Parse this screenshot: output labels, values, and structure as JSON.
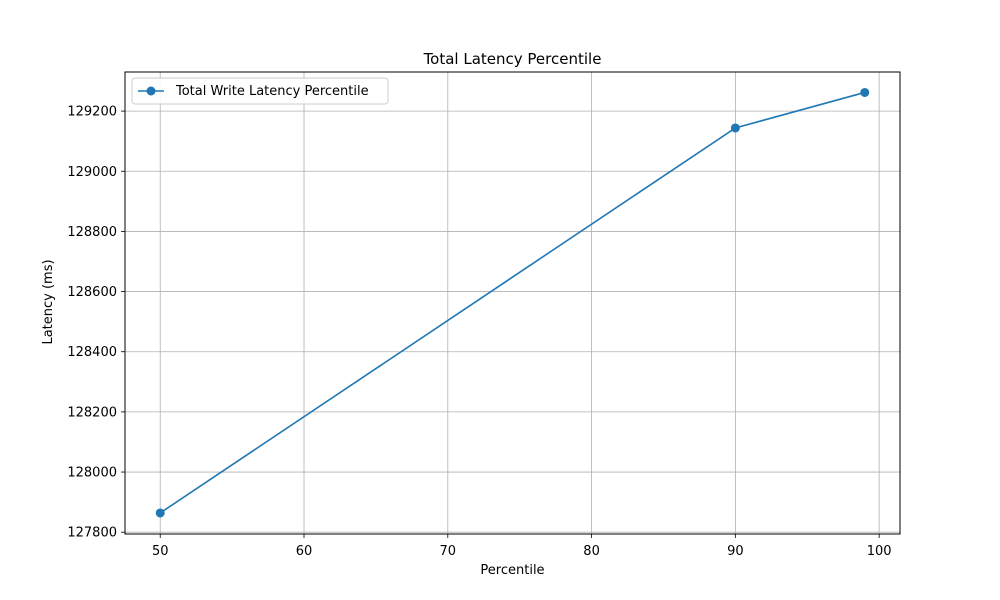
{
  "chart_data": {
    "type": "line",
    "title": "Total Latency Percentile",
    "xlabel": "Percentile",
    "ylabel": "Latency (ms)",
    "xlim": [
      47.55,
      101.45
    ],
    "ylim": [
      127794,
      129330
    ],
    "xticks": [
      50,
      60,
      70,
      80,
      90,
      100
    ],
    "yticks": [
      127800,
      128000,
      128200,
      128400,
      128600,
      128800,
      129000,
      129200
    ],
    "grid": true,
    "legend_position": "top-left",
    "series": [
      {
        "name": "Total Write Latency Percentile",
        "color": "#1f77b4",
        "marker": "circle",
        "x": [
          50,
          90,
          99
        ],
        "y": [
          127864,
          129144,
          129262
        ]
      }
    ]
  }
}
